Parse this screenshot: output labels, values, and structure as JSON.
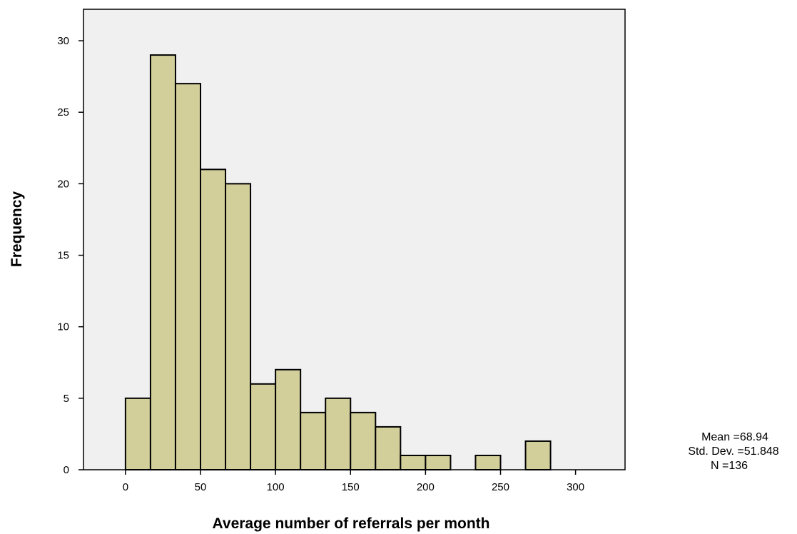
{
  "chart_data": {
    "type": "bar",
    "subtype": "histogram",
    "title": "",
    "xlabel": "Average number of referrals per month",
    "ylabel": "Frequency",
    "bin_width": 16.67,
    "bins": [
      {
        "start": 0,
        "end": 16.67,
        "count": 5
      },
      {
        "start": 16.67,
        "end": 33.33,
        "count": 29
      },
      {
        "start": 33.33,
        "end": 50,
        "count": 27
      },
      {
        "start": 50,
        "end": 66.67,
        "count": 21
      },
      {
        "start": 66.67,
        "end": 83.33,
        "count": 20
      },
      {
        "start": 83.33,
        "end": 100,
        "count": 6
      },
      {
        "start": 100,
        "end": 116.67,
        "count": 7
      },
      {
        "start": 116.67,
        "end": 133.33,
        "count": 4
      },
      {
        "start": 133.33,
        "end": 150,
        "count": 5
      },
      {
        "start": 150,
        "end": 166.67,
        "count": 4
      },
      {
        "start": 166.67,
        "end": 183.33,
        "count": 3
      },
      {
        "start": 183.33,
        "end": 200,
        "count": 1
      },
      {
        "start": 200,
        "end": 216.67,
        "count": 1
      },
      {
        "start": 216.67,
        "end": 233.33,
        "count": 0
      },
      {
        "start": 233.33,
        "end": 250,
        "count": 1
      },
      {
        "start": 250,
        "end": 266.67,
        "count": 0
      },
      {
        "start": 266.67,
        "end": 283.33,
        "count": 2
      },
      {
        "start": 283.33,
        "end": 300,
        "count": 0
      }
    ],
    "xlim": [
      -28,
      333
    ],
    "ylim": [
      0,
      32.2
    ],
    "xticks": [
      "0",
      "50",
      "100",
      "150",
      "200",
      "250",
      "300"
    ],
    "xtick_values": [
      0,
      50,
      100,
      150,
      200,
      250,
      300
    ],
    "yticks": [
      "0",
      "5",
      "10",
      "15",
      "20",
      "25",
      "30"
    ],
    "ytick_values": [
      0,
      5,
      10,
      15,
      20,
      25,
      30
    ],
    "grid": false,
    "legend": "none",
    "stats": {
      "mean": "Mean =68.94",
      "std_dev": "Std. Dev. =51.848",
      "n": "N =136"
    },
    "colors": {
      "bar_fill": "#d3cf9b",
      "bar_stroke": "#000000",
      "plot_background": "#f0f0f0",
      "frame": "#000000"
    }
  }
}
